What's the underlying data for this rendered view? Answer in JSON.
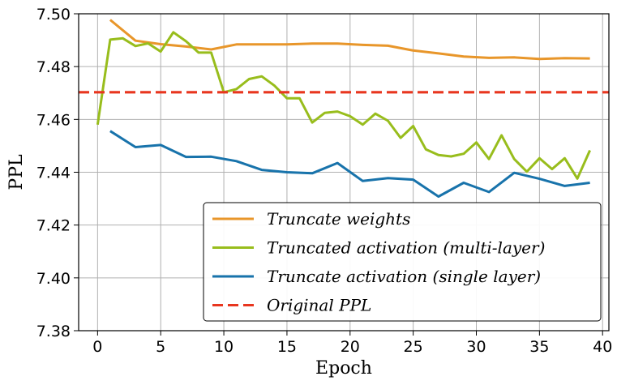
{
  "chart_data": {
    "type": "line",
    "xlabel": "Epoch",
    "ylabel": "PPL",
    "xlim": [
      -1.5,
      40.5
    ],
    "ylim": [
      7.38,
      7.5
    ],
    "xticks": [
      0,
      5,
      10,
      15,
      20,
      25,
      30,
      35,
      40
    ],
    "yticks": [
      7.38,
      7.4,
      7.42,
      7.44,
      7.46,
      7.48,
      7.5
    ],
    "xtick_labels": [
      "0",
      "5",
      "10",
      "15",
      "20",
      "25",
      "30",
      "35",
      "40"
    ],
    "ytick_labels": [
      "7.38",
      "7.40",
      "7.42",
      "7.44",
      "7.46",
      "7.48",
      "7.50"
    ],
    "grid": true,
    "legend_position": "lower-right",
    "series": [
      {
        "name": "Truncate weights",
        "color": "#e8962a",
        "style": "solid",
        "x": [
          1,
          3,
          5,
          7,
          9,
          11,
          13,
          15,
          17,
          19,
          21,
          23,
          25,
          27,
          29,
          31,
          33,
          35,
          37,
          39
        ],
        "values": [
          7.4977,
          7.4898,
          7.4885,
          7.4876,
          7.4865,
          7.4884,
          7.4884,
          7.4884,
          7.4887,
          7.4887,
          7.4882,
          7.4879,
          7.4861,
          7.485,
          7.4838,
          7.4833,
          7.4835,
          7.4829,
          7.4832,
          7.4831
        ]
      },
      {
        "name": "Truncated activation (multi-layer)",
        "color": "#98bd1c",
        "style": "solid",
        "x": [
          0,
          1,
          2,
          3,
          4,
          5,
          6,
          7,
          8,
          9,
          10,
          11,
          12,
          13,
          14,
          15,
          16,
          17,
          18,
          19,
          20,
          21,
          22,
          23,
          24,
          25,
          26,
          27,
          28,
          29,
          30,
          31,
          32,
          33,
          34,
          35,
          36,
          37,
          38,
          39
        ],
        "values": [
          7.458,
          7.4902,
          7.4907,
          7.4878,
          7.4888,
          7.4857,
          7.493,
          7.4896,
          7.4853,
          7.4853,
          7.4703,
          7.4715,
          7.4753,
          7.4763,
          7.4728,
          7.468,
          7.468,
          7.4588,
          7.4625,
          7.463,
          7.4612,
          7.458,
          7.4622,
          7.4595,
          7.453,
          7.4575,
          7.4487,
          7.4465,
          7.446,
          7.447,
          7.4513,
          7.445,
          7.454,
          7.445,
          7.4402,
          7.4453,
          7.4412,
          7.4453,
          7.4376,
          7.4483
        ]
      },
      {
        "name": "Truncate activation (single layer)",
        "color": "#1873ab",
        "style": "solid",
        "x": [
          1,
          3,
          5,
          7,
          9,
          11,
          13,
          15,
          17,
          19,
          21,
          23,
          25,
          27,
          29,
          31,
          33,
          35,
          37,
          39
        ],
        "values": [
          7.4556,
          7.4495,
          7.4503,
          7.4458,
          7.4459,
          7.4442,
          7.4409,
          7.44,
          7.4396,
          7.4435,
          7.4367,
          7.4378,
          7.4372,
          7.4308,
          7.436,
          7.4325,
          7.4398,
          7.4375,
          7.4348,
          7.436
        ]
      },
      {
        "name": "Original PPL",
        "color": "#e8361f",
        "style": "dashed",
        "x": [
          -1.5,
          40.5
        ],
        "values": [
          7.4703,
          7.4703
        ]
      }
    ]
  }
}
